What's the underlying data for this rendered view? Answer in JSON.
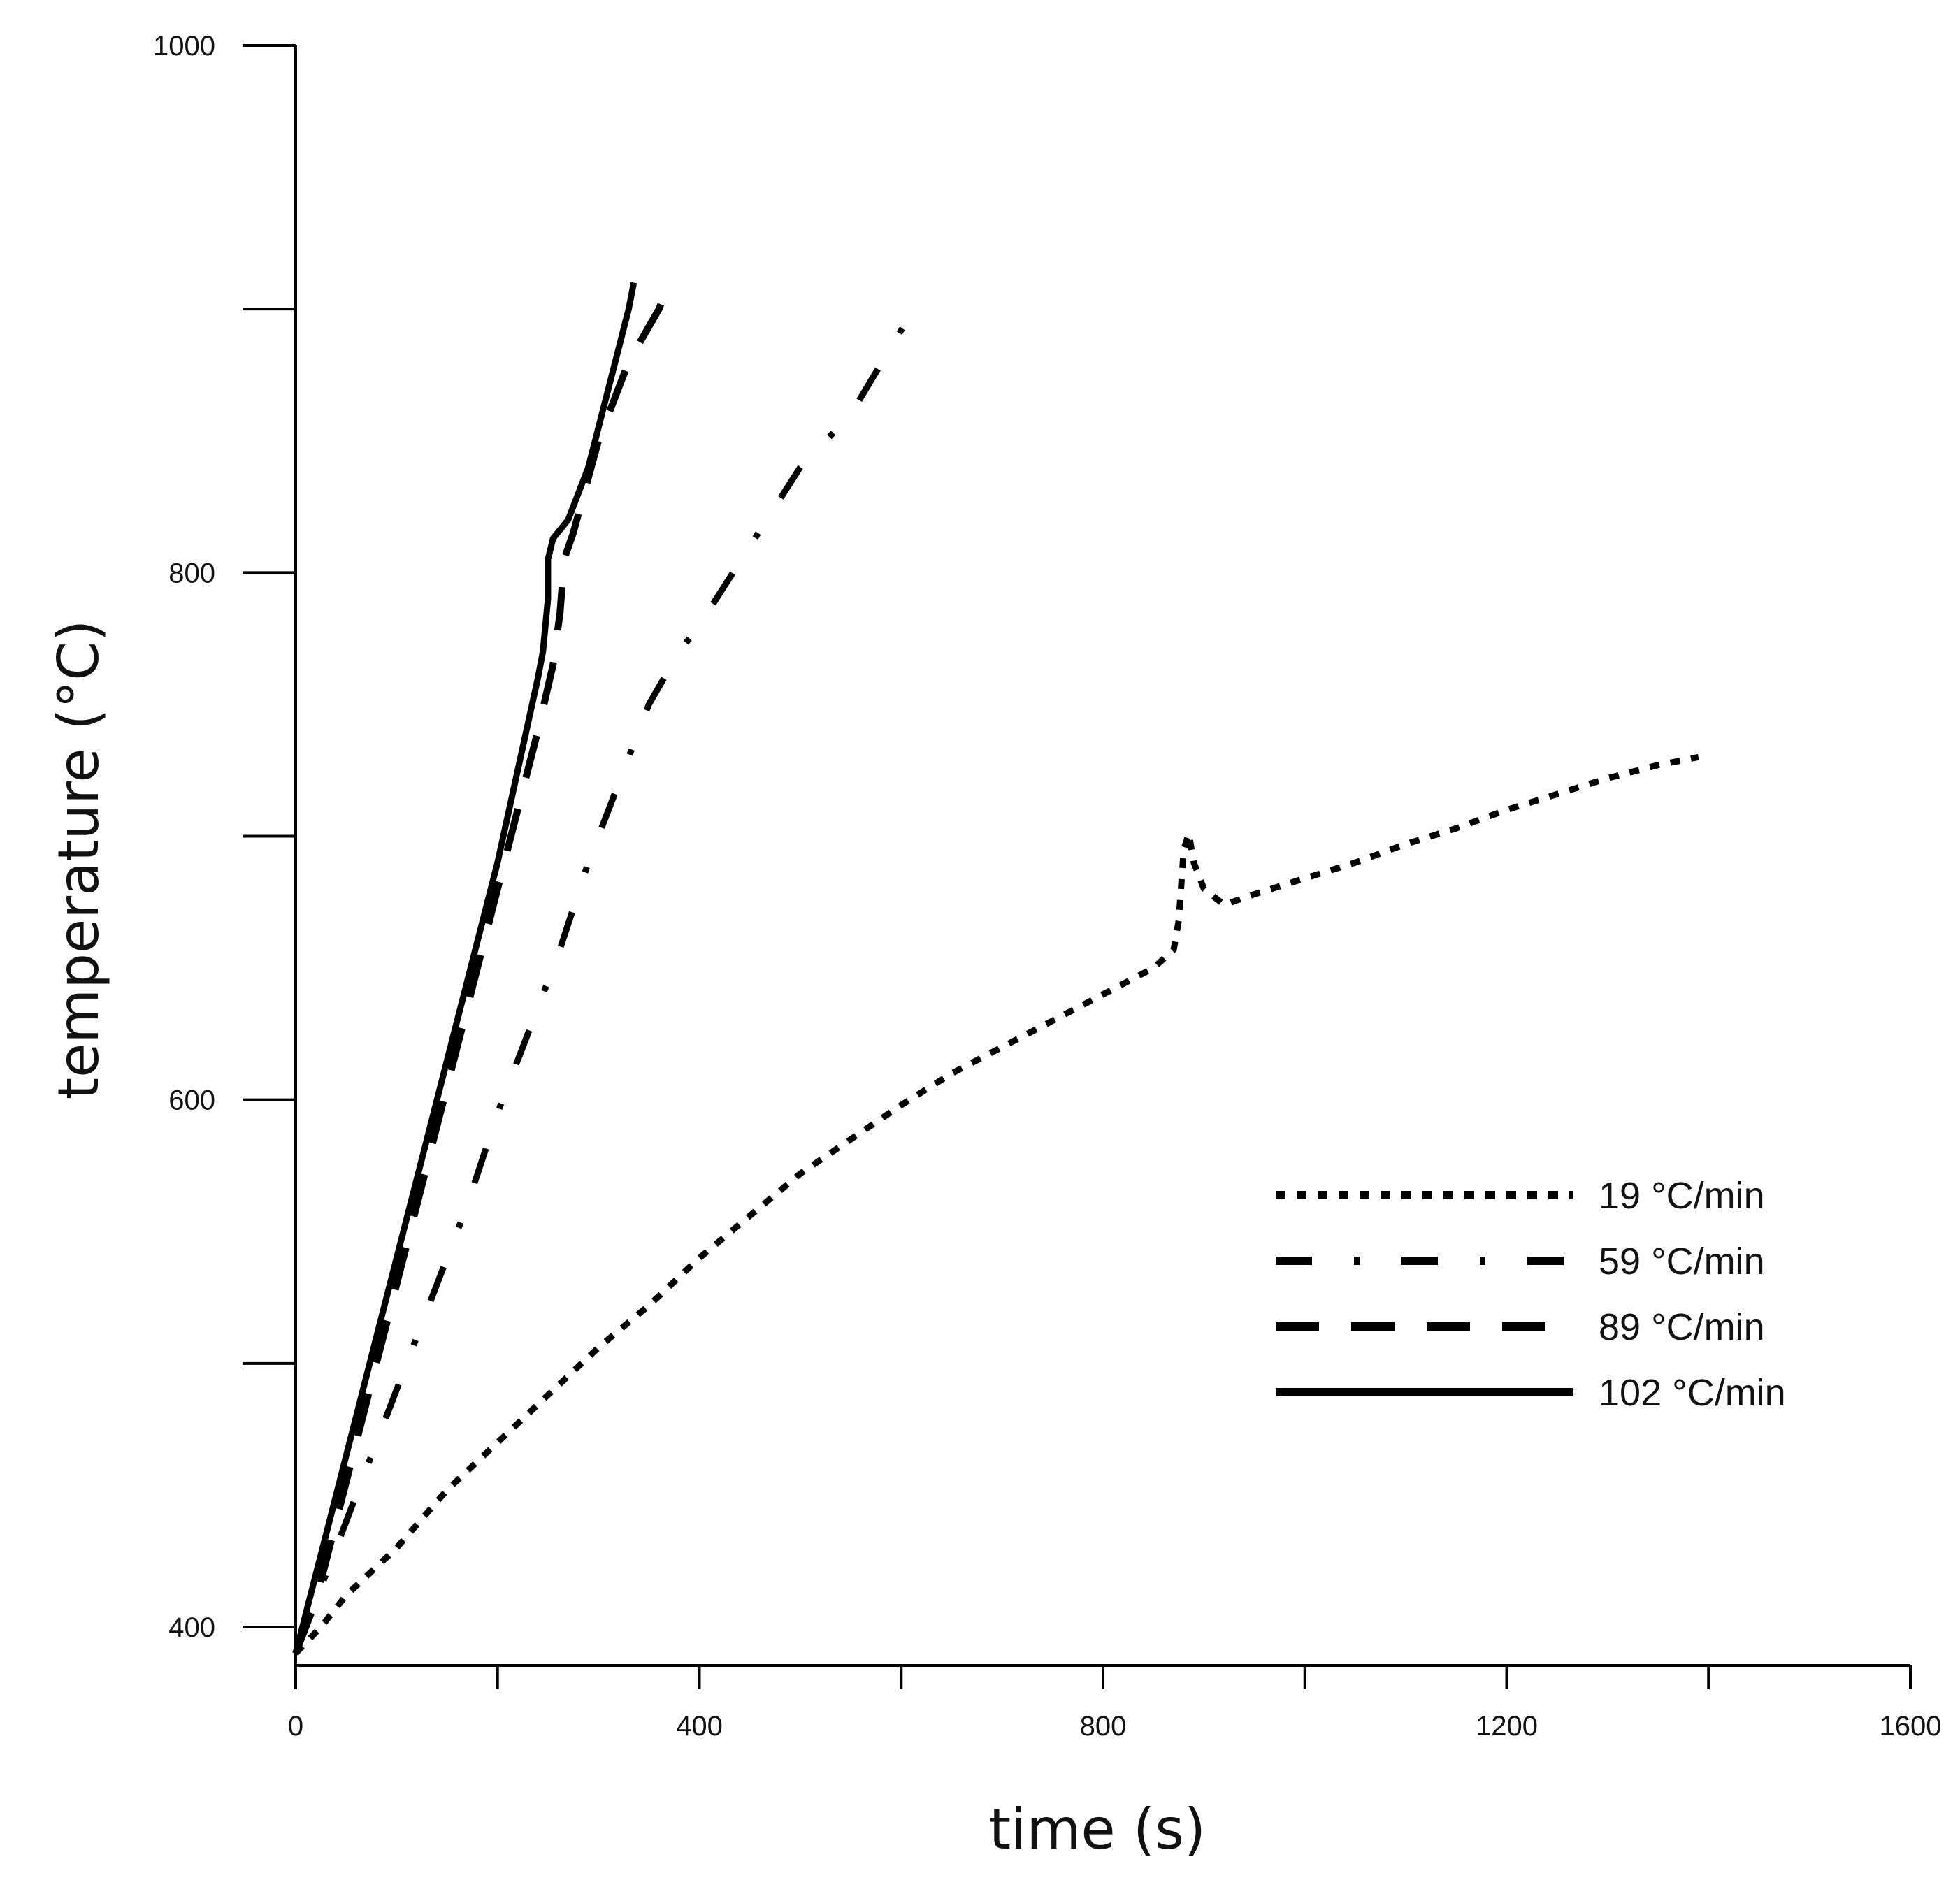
{
  "chart_data": {
    "type": "line",
    "title": "",
    "xlabel": "time (s)",
    "ylabel": "temperature (°C)",
    "xlim": [
      0,
      1600
    ],
    "ylim": [
      385,
      1000
    ],
    "xticks": [
      0,
      400,
      800,
      1200,
      1600
    ],
    "x_minor_ticks": [
      200,
      600,
      1000,
      1400
    ],
    "yticks": [
      400,
      600,
      800,
      1000
    ],
    "y_minor_ticks": [
      500,
      700,
      900
    ],
    "grid": false,
    "legend_position": "lower-right",
    "series": [
      {
        "name": "19 °C/min",
        "style": "dotted",
        "points": [
          [
            0,
            390
          ],
          [
            25,
            400
          ],
          [
            50,
            412
          ],
          [
            100,
            430
          ],
          [
            150,
            452
          ],
          [
            200,
            470
          ],
          [
            250,
            488
          ],
          [
            300,
            506
          ],
          [
            350,
            522
          ],
          [
            400,
            540
          ],
          [
            450,
            556
          ],
          [
            500,
            572
          ],
          [
            550,
            585
          ],
          [
            600,
            598
          ],
          [
            650,
            610
          ],
          [
            700,
            620
          ],
          [
            750,
            630
          ],
          [
            800,
            640
          ],
          [
            850,
            650
          ],
          [
            870,
            657
          ],
          [
            875,
            668
          ],
          [
            880,
            695
          ],
          [
            885,
            701
          ],
          [
            890,
            690
          ],
          [
            900,
            680
          ],
          [
            920,
            674
          ],
          [
            950,
            678
          ],
          [
            1000,
            684
          ],
          [
            1050,
            690
          ],
          [
            1100,
            697
          ],
          [
            1150,
            703
          ],
          [
            1200,
            710
          ],
          [
            1250,
            716
          ],
          [
            1300,
            722
          ],
          [
            1350,
            727
          ],
          [
            1390,
            730
          ]
        ]
      },
      {
        "name": "59 °C/min",
        "style": "dash-dot",
        "points": [
          [
            0,
            390
          ],
          [
            20,
            410
          ],
          [
            50,
            440
          ],
          [
            80,
            470
          ],
          [
            110,
            500
          ],
          [
            140,
            530
          ],
          [
            170,
            560
          ],
          [
            200,
            595
          ],
          [
            230,
            625
          ],
          [
            260,
            655
          ],
          [
            290,
            690
          ],
          [
            320,
            720
          ],
          [
            350,
            750
          ],
          [
            380,
            770
          ],
          [
            400,
            780
          ],
          [
            450,
            810
          ],
          [
            500,
            840
          ],
          [
            550,
            860
          ],
          [
            600,
            892
          ],
          [
            615,
            900
          ]
        ]
      },
      {
        "name": "89 °C/min",
        "style": "dashed",
        "points": [
          [
            0,
            390
          ],
          [
            20,
            410
          ],
          [
            40,
            440
          ],
          [
            60,
            470
          ],
          [
            80,
            500
          ],
          [
            100,
            530
          ],
          [
            120,
            560
          ],
          [
            140,
            590
          ],
          [
            160,
            620
          ],
          [
            180,
            650
          ],
          [
            200,
            680
          ],
          [
            220,
            710
          ],
          [
            240,
            740
          ],
          [
            255,
            765
          ],
          [
            262,
            785
          ],
          [
            266,
            805
          ],
          [
            275,
            815
          ],
          [
            300,
            850
          ],
          [
            330,
            880
          ],
          [
            360,
            900
          ],
          [
            365,
            905
          ]
        ]
      },
      {
        "name": "102 °C/min",
        "style": "solid",
        "points": [
          [
            0,
            390
          ],
          [
            40,
            450
          ],
          [
            80,
            510
          ],
          [
            120,
            570
          ],
          [
            160,
            630
          ],
          [
            200,
            690
          ],
          [
            240,
            760
          ],
          [
            245,
            770
          ],
          [
            250,
            790
          ],
          [
            250,
            805
          ],
          [
            255,
            813
          ],
          [
            270,
            820
          ],
          [
            290,
            840
          ],
          [
            310,
            870
          ],
          [
            330,
            900
          ],
          [
            335,
            910
          ]
        ]
      }
    ]
  }
}
